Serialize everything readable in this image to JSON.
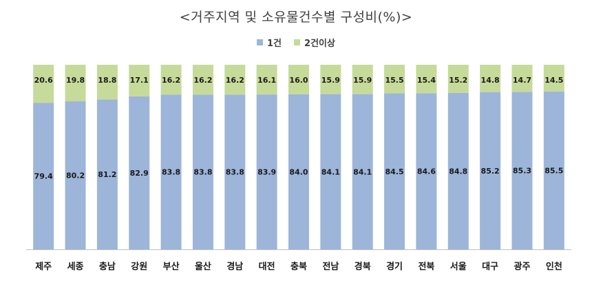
{
  "chart_data": {
    "type": "bar",
    "stacked": true,
    "title": "<거주지역 및 소유물건수별 구성비(%)>",
    "categories": [
      "제주",
      "세종",
      "충남",
      "강원",
      "부산",
      "울산",
      "경남",
      "대전",
      "충북",
      "전남",
      "경북",
      "경기",
      "전북",
      "서울",
      "대구",
      "광주",
      "인천"
    ],
    "series": [
      {
        "name": "1건",
        "color": "#9db5d9",
        "values": [
          79.4,
          80.2,
          81.2,
          82.9,
          83.8,
          83.8,
          83.8,
          83.9,
          84.0,
          84.1,
          84.1,
          84.5,
          84.6,
          84.8,
          85.2,
          85.3,
          85.5
        ]
      },
      {
        "name": "2건이상",
        "color": "#c6da9a",
        "values": [
          20.6,
          19.8,
          18.8,
          17.1,
          16.2,
          16.2,
          16.2,
          16.1,
          16.0,
          15.9,
          15.9,
          15.5,
          15.4,
          15.2,
          14.8,
          14.7,
          14.5
        ]
      }
    ],
    "ylim": [
      0,
      100
    ],
    "legend_position": "top",
    "grid": false
  }
}
